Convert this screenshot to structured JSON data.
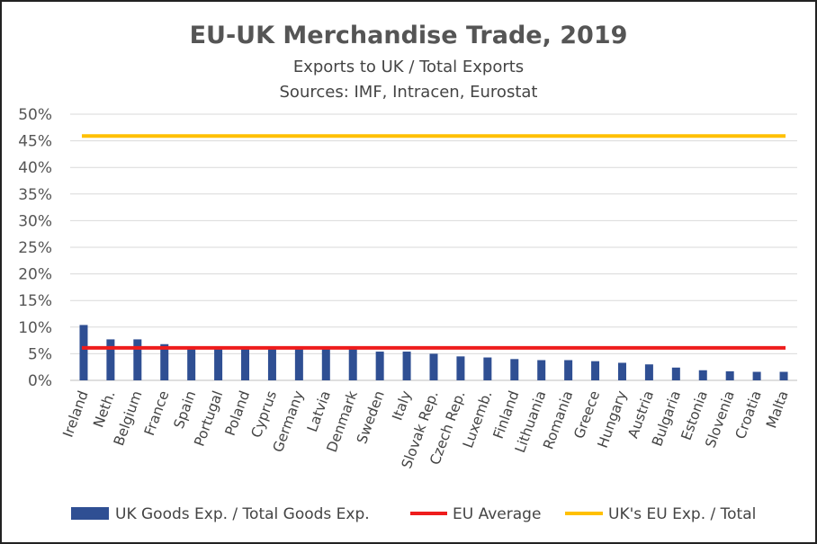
{
  "chart_data": {
    "type": "bar",
    "title": "EU-UK Merchandise Trade, 2019",
    "subtitle": "Exports to UK / Total Exports",
    "source": "Sources:  IMF, Intracen, Eurostat",
    "y_tick_labels": [
      "0%",
      "5%",
      "10%",
      "15%",
      "20%",
      "25%",
      "30%",
      "35%",
      "40%",
      "45%",
      "50%"
    ],
    "ylim": [
      0,
      0.5
    ],
    "grid": true,
    "legend_position": "bottom",
    "categories": [
      "Ireland",
      "Neth.",
      "Belgium",
      "France",
      "Spain",
      "Portugal",
      "Poland",
      "Cyprus",
      "Germany",
      "Latvia",
      "Denmark",
      "Sweden",
      "Italy",
      "Slovak Rep.",
      "Czech Rep.",
      "Luxemb.",
      "Finland",
      "Lithuania",
      "Romania",
      "Greece",
      "Hungary",
      "Austria",
      "Bulgaria",
      "Estonia",
      "Slovenia",
      "Croatia",
      "Malta"
    ],
    "series": [
      {
        "name": "UK Goods Exp. / Total Goods Exp.",
        "kind": "bar",
        "color": "#2f4f93",
        "values": [
          0.104,
          0.077,
          0.077,
          0.068,
          0.062,
          0.062,
          0.06,
          0.06,
          0.06,
          0.06,
          0.06,
          0.054,
          0.054,
          0.05,
          0.045,
          0.043,
          0.04,
          0.038,
          0.038,
          0.036,
          0.033,
          0.03,
          0.024,
          0.019,
          0.017,
          0.016,
          0.016
        ]
      },
      {
        "name": "EU Average",
        "kind": "line",
        "color": "#ee1c1c",
        "values": [
          0.061,
          0.061,
          0.061,
          0.061,
          0.061,
          0.061,
          0.061,
          0.061,
          0.061,
          0.061,
          0.061,
          0.061,
          0.061,
          0.061,
          0.061,
          0.061,
          0.061,
          0.061,
          0.061,
          0.061,
          0.061,
          0.061,
          0.061,
          0.061,
          0.061,
          0.061,
          0.061
        ]
      },
      {
        "name": "UK's EU Exp. / Total",
        "kind": "line",
        "color": "#ffc000",
        "values": [
          0.459,
          0.459,
          0.459,
          0.459,
          0.459,
          0.459,
          0.459,
          0.459,
          0.459,
          0.459,
          0.459,
          0.459,
          0.459,
          0.459,
          0.459,
          0.459,
          0.459,
          0.459,
          0.459,
          0.459,
          0.459,
          0.459,
          0.459,
          0.459,
          0.459,
          0.459,
          0.459
        ]
      }
    ]
  }
}
